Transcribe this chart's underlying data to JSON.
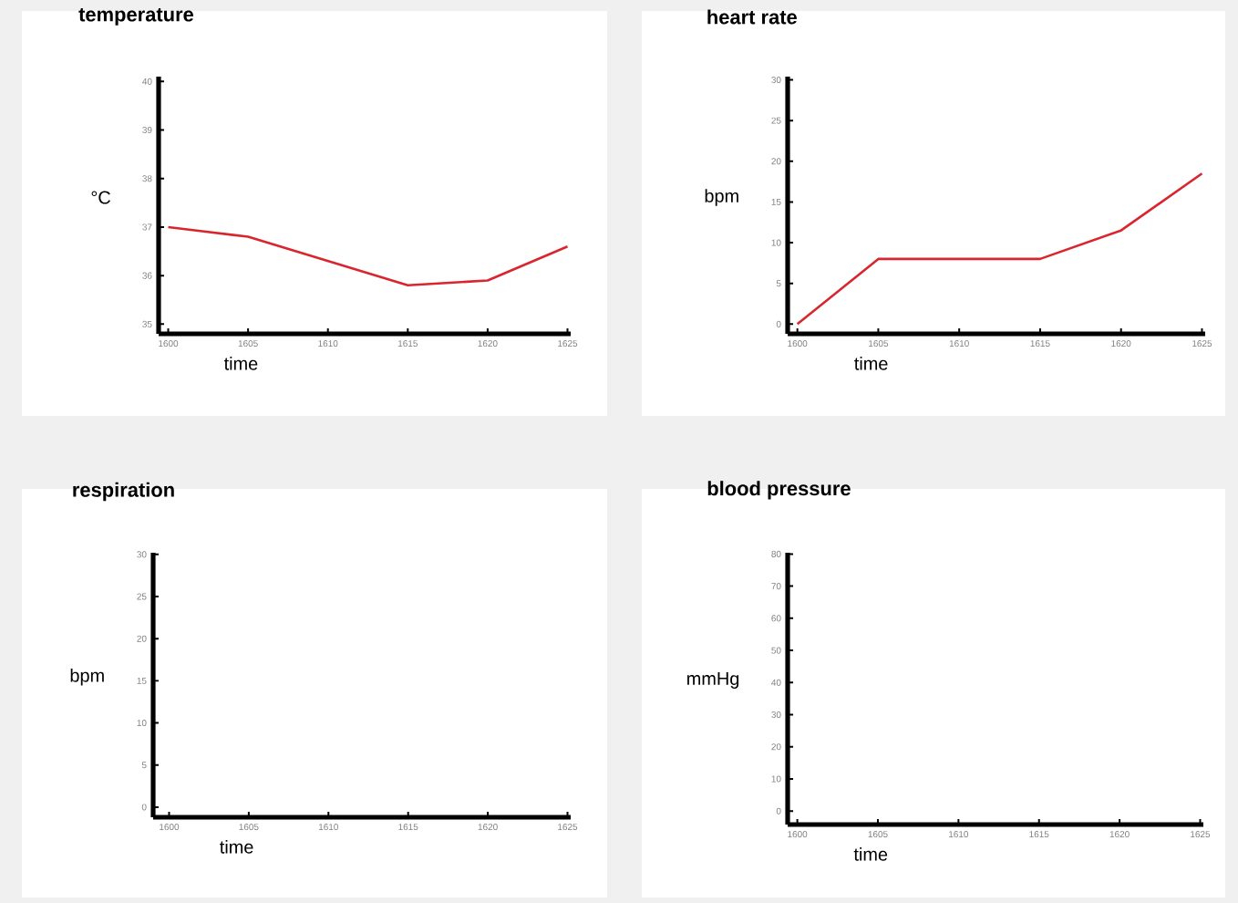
{
  "chart_data": [
    {
      "type": "line",
      "title": "temperature",
      "xlabel": "time",
      "ylabel": "°C",
      "x": [
        1600,
        1605,
        1610,
        1615,
        1620,
        1625
      ],
      "series": [
        {
          "color": "#d9262e",
          "values": [
            37,
            36.8,
            36.3,
            35.8,
            35.9,
            36.6
          ]
        }
      ],
      "xlim": [
        1599.4,
        1625.2
      ],
      "xticks": [
        1600,
        1605,
        1610,
        1615,
        1620,
        1625
      ],
      "ylim": [
        34.8,
        40.1
      ],
      "yticks": [
        35,
        36,
        37,
        38,
        39,
        40
      ]
    },
    {
      "type": "line",
      "title": "heart rate",
      "xlabel": "time",
      "ylabel": "bpm",
      "x": [
        1600,
        1605,
        1610,
        1615,
        1620,
        1625
      ],
      "series": [
        {
          "color": "#d9262e",
          "values": [
            0,
            8,
            8,
            8,
            11.5,
            18.5
          ]
        }
      ],
      "xlim": [
        1599.4,
        1625.2
      ],
      "xticks": [
        1600,
        1605,
        1610,
        1615,
        1620,
        1625
      ],
      "ylim": [
        -1.2,
        30.4
      ],
      "yticks": [
        0,
        5,
        10,
        15,
        20,
        25,
        30
      ]
    },
    {
      "type": "line",
      "title": "respiration",
      "xlabel": "time",
      "ylabel": "bpm",
      "xlim": [
        1599,
        1625.2
      ],
      "xticks": [
        1600,
        1605,
        1610,
        1615,
        1620,
        1625
      ],
      "ylim": [
        -1.2,
        30.2
      ],
      "yticks": [
        0,
        5,
        10,
        15,
        20,
        25,
        30
      ]
    },
    {
      "type": "line",
      "title": "blood pressure",
      "xlabel": "time",
      "ylabel": "mmHg",
      "xlim": [
        1599.4,
        1625.2
      ],
      "xticks": [
        1600,
        1605,
        1610,
        1615,
        1620,
        1625
      ],
      "ylim": [
        -4.2,
        80.4
      ],
      "yticks": [
        0,
        10,
        20,
        30,
        40,
        50,
        60,
        70,
        80
      ]
    }
  ]
}
